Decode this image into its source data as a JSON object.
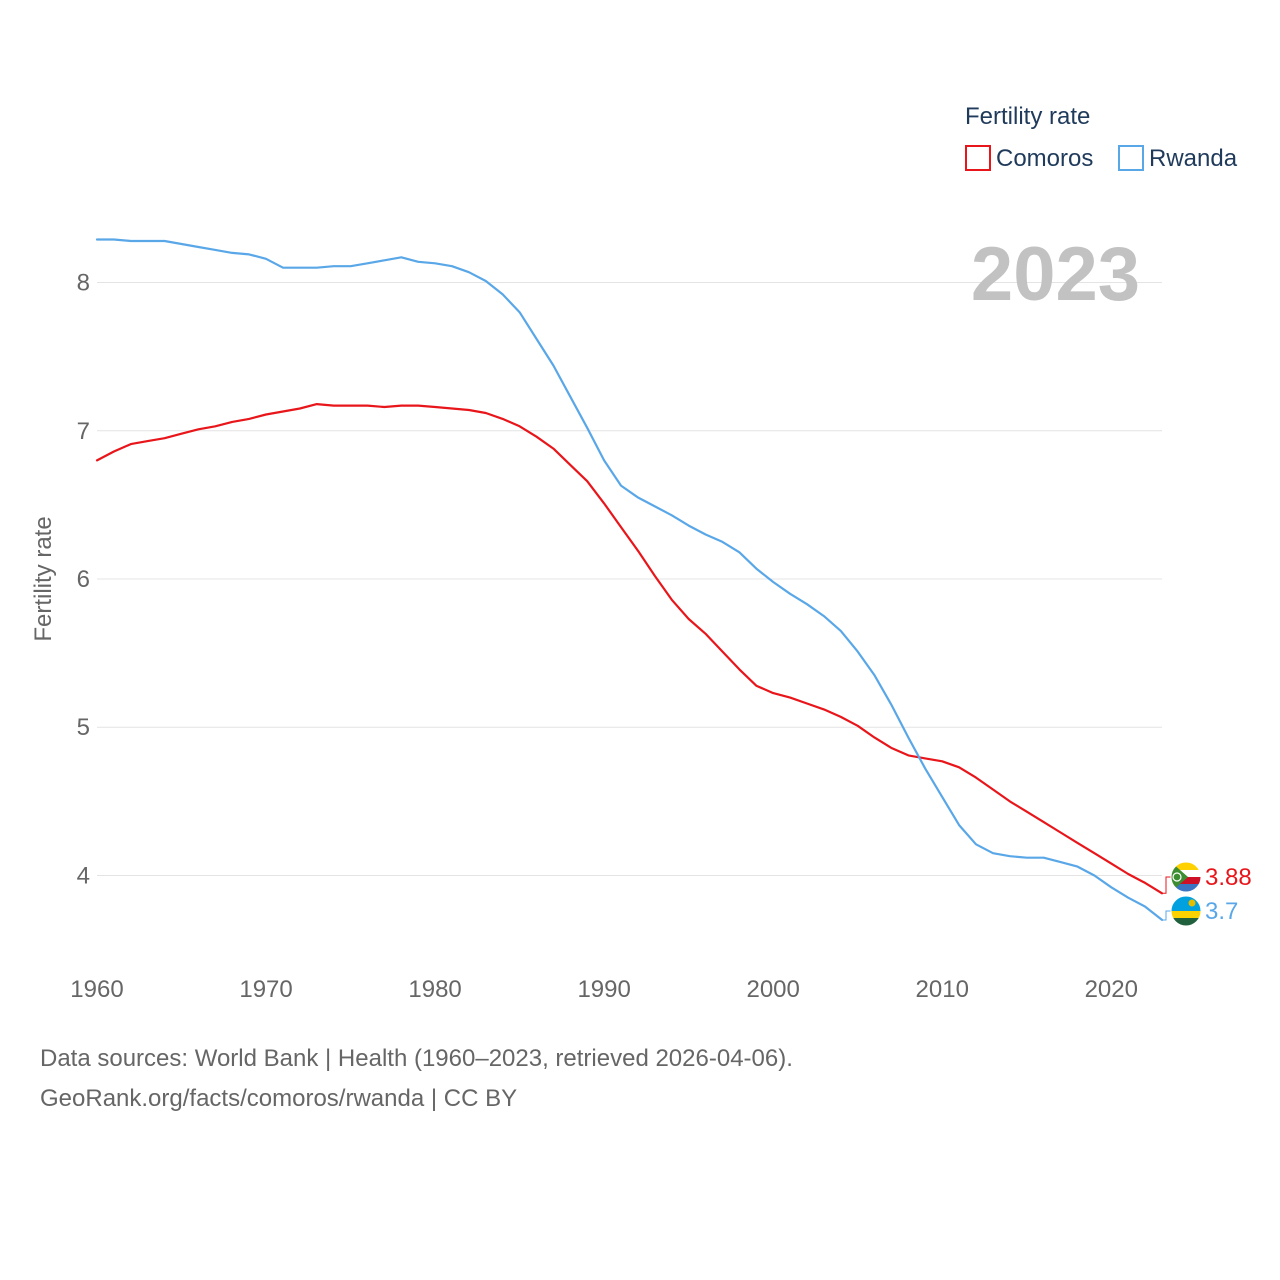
{
  "chart_data": {
    "type": "line",
    "legend_title": "Fertility rate",
    "ylabel": "Fertility rate",
    "year_label": "2023",
    "ylim": [
      3.45,
      8.55
    ],
    "xlim": [
      1960,
      2023
    ],
    "y_ticks": [
      "4",
      "5",
      "6",
      "7",
      "8"
    ],
    "x_ticks": [
      "1960",
      "1970",
      "1980",
      "1990",
      "2000",
      "2010",
      "2020"
    ],
    "grid": true,
    "legend_position": "top-right",
    "series": [
      {
        "name": "Comoros",
        "color": "#e8161b",
        "end_label": "3.88",
        "x": [
          1960,
          1961,
          1962,
          1963,
          1964,
          1965,
          1966,
          1967,
          1968,
          1969,
          1970,
          1971,
          1972,
          1973,
          1974,
          1975,
          1976,
          1977,
          1978,
          1979,
          1980,
          1981,
          1982,
          1983,
          1984,
          1985,
          1986,
          1987,
          1988,
          1989,
          1990,
          1991,
          1992,
          1993,
          1994,
          1995,
          1996,
          1997,
          1998,
          1999,
          2000,
          2001,
          2002,
          2003,
          2004,
          2005,
          2006,
          2007,
          2008,
          2009,
          2010,
          2011,
          2012,
          2013,
          2014,
          2015,
          2016,
          2017,
          2018,
          2019,
          2020,
          2021,
          2022,
          2023
        ],
        "values": [
          6.8,
          6.86,
          6.91,
          6.93,
          6.95,
          6.98,
          7.01,
          7.03,
          7.06,
          7.08,
          7.11,
          7.13,
          7.15,
          7.18,
          7.17,
          7.17,
          7.17,
          7.16,
          7.17,
          7.17,
          7.16,
          7.15,
          7.14,
          7.12,
          7.08,
          7.03,
          6.96,
          6.88,
          6.77,
          6.66,
          6.51,
          6.35,
          6.19,
          6.02,
          5.86,
          5.73,
          5.63,
          5.51,
          5.39,
          5.28,
          5.23,
          5.2,
          5.16,
          5.12,
          5.07,
          5.01,
          4.93,
          4.86,
          4.81,
          4.79,
          4.77,
          4.73,
          4.66,
          4.58,
          4.5,
          4.43,
          4.36,
          4.29,
          4.22,
          4.15,
          4.08,
          4.01,
          3.95,
          3.88
        ]
      },
      {
        "name": "Rwanda",
        "color": "#5aa7e8",
        "end_label": "3.7",
        "x": [
          1960,
          1961,
          1962,
          1963,
          1964,
          1965,
          1966,
          1967,
          1968,
          1969,
          1970,
          1971,
          1972,
          1973,
          1974,
          1975,
          1976,
          1977,
          1978,
          1979,
          1980,
          1981,
          1982,
          1983,
          1984,
          1985,
          1986,
          1987,
          1988,
          1989,
          1990,
          1991,
          1992,
          1993,
          1994,
          1995,
          1996,
          1997,
          1998,
          1999,
          2000,
          2001,
          2002,
          2003,
          2004,
          2005,
          2006,
          2007,
          2008,
          2009,
          2010,
          2011,
          2012,
          2013,
          2014,
          2015,
          2016,
          2017,
          2018,
          2019,
          2020,
          2021,
          2022,
          2023
        ],
        "values": [
          8.29,
          8.29,
          8.28,
          8.28,
          8.28,
          8.26,
          8.24,
          8.22,
          8.2,
          8.19,
          8.16,
          8.1,
          8.1,
          8.1,
          8.11,
          8.11,
          8.13,
          8.15,
          8.17,
          8.14,
          8.13,
          8.11,
          8.07,
          8.01,
          7.92,
          7.8,
          7.62,
          7.44,
          7.23,
          7.02,
          6.8,
          6.63,
          6.55,
          6.49,
          6.43,
          6.36,
          6.3,
          6.25,
          6.18,
          6.07,
          5.98,
          5.9,
          5.83,
          5.75,
          5.65,
          5.51,
          5.35,
          5.15,
          4.93,
          4.72,
          4.53,
          4.34,
          4.21,
          4.15,
          4.13,
          4.12,
          4.12,
          4.09,
          4.06,
          4.0,
          3.92,
          3.85,
          3.79,
          3.7
        ]
      }
    ]
  },
  "footer": {
    "line1": "Data sources: World Bank | Health (1960–2023, retrieved 2026-04-06).",
    "line2": "GeoRank.org/facts/comoros/rwanda | CC BY"
  }
}
